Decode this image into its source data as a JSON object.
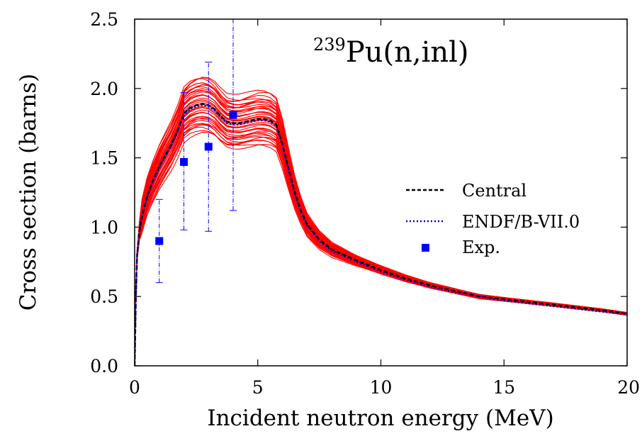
{
  "chart_data": {
    "type": "line",
    "title_superscript": "239",
    "title": "Pu(n,inl)",
    "xlabel": "Incident neutron energy (MeV)",
    "ylabel": "Cross section (barns)",
    "xlim": [
      0,
      20
    ],
    "ylim": [
      0,
      2.5
    ],
    "xticks": [
      "0",
      "5",
      "10",
      "15",
      "20"
    ],
    "yticks": [
      "0.0",
      "0.5",
      "1.0",
      "1.5",
      "2.0",
      "2.5"
    ],
    "grid": false,
    "legend_position": "right",
    "colors": {
      "band": "#ff0000",
      "central": "#000000",
      "endf": "#0000cc",
      "exp": "#0000ff"
    },
    "series": [
      {
        "name": "Central",
        "style": "dashed",
        "x": [
          0,
          0.05,
          0.1,
          0.2,
          0.3,
          0.5,
          0.75,
          1.0,
          1.25,
          1.5,
          1.75,
          2.0,
          2.25,
          2.5,
          2.75,
          3.0,
          3.25,
          3.5,
          3.75,
          4.0,
          4.25,
          4.5,
          4.75,
          5.0,
          5.25,
          5.5,
          5.75,
          6.0,
          6.25,
          6.5,
          6.75,
          7.0,
          7.5,
          8.0,
          9.0,
          10.0,
          11.0,
          12.0,
          13.0,
          14.0,
          15.0,
          16.0,
          17.0,
          18.0,
          19.0,
          20.0
        ],
        "y": [
          0,
          0.5,
          0.8,
          0.98,
          1.08,
          1.22,
          1.34,
          1.44,
          1.52,
          1.6,
          1.7,
          1.82,
          1.86,
          1.88,
          1.89,
          1.88,
          1.85,
          1.8,
          1.76,
          1.75,
          1.75,
          1.76,
          1.77,
          1.78,
          1.78,
          1.77,
          1.74,
          1.6,
          1.42,
          1.25,
          1.12,
          1.02,
          0.91,
          0.84,
          0.76,
          0.69,
          0.63,
          0.58,
          0.54,
          0.5,
          0.48,
          0.46,
          0.44,
          0.42,
          0.4,
          0.375
        ]
      },
      {
        "name": "ENDF/B-VII.0",
        "style": "dotted",
        "x": [
          0,
          0.05,
          0.1,
          0.2,
          0.3,
          0.5,
          0.75,
          1.0,
          1.25,
          1.5,
          1.75,
          2.0,
          2.25,
          2.5,
          2.75,
          3.0,
          3.25,
          3.5,
          3.75,
          4.0,
          4.25,
          4.5,
          4.75,
          5.0,
          5.25,
          5.5,
          5.75,
          6.0,
          6.25,
          6.5,
          6.75,
          7.0,
          7.5,
          8.0,
          9.0,
          10.0,
          11.0,
          12.0,
          13.0,
          14.0,
          15.0,
          16.0,
          17.0,
          18.0,
          19.0,
          20.0
        ],
        "y": [
          0,
          0.5,
          0.8,
          0.97,
          1.07,
          1.21,
          1.33,
          1.43,
          1.51,
          1.59,
          1.69,
          1.81,
          1.85,
          1.87,
          1.88,
          1.87,
          1.84,
          1.79,
          1.75,
          1.74,
          1.74,
          1.75,
          1.76,
          1.77,
          1.77,
          1.76,
          1.73,
          1.59,
          1.41,
          1.24,
          1.11,
          1.01,
          0.9,
          0.83,
          0.75,
          0.68,
          0.62,
          0.57,
          0.53,
          0.5,
          0.47,
          0.45,
          0.43,
          0.41,
          0.39,
          0.37
        ]
      }
    ],
    "band": {
      "count": 40,
      "spread_peak": 0.12,
      "spread_tail": 0.03
    },
    "experimental": {
      "name": "Exp.",
      "points": [
        {
          "x": 1.0,
          "y": 0.9,
          "ylo": 0.6,
          "yhi": 1.2
        },
        {
          "x": 2.0,
          "y": 1.47,
          "ylo": 0.98,
          "yhi": 1.97
        },
        {
          "x": 3.0,
          "y": 1.58,
          "ylo": 0.97,
          "yhi": 2.19
        },
        {
          "x": 4.0,
          "y": 1.81,
          "ylo": 1.12,
          "yhi": 2.5
        }
      ]
    }
  }
}
